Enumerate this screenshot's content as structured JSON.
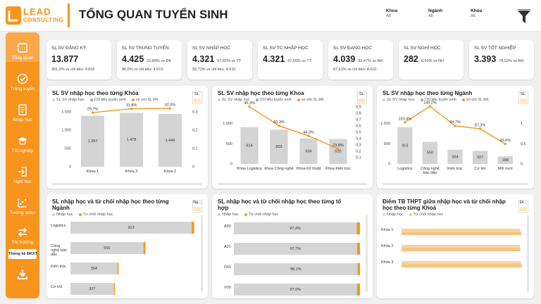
{
  "header": {
    "logo": {
      "top": "LEAD",
      "bottom": "CONSULTING"
    },
    "title": "TỔNG QUAN TUYỂN SINH",
    "filters": [
      {
        "label": "Khoa",
        "value": "All"
      },
      {
        "label": "Ngành",
        "value": "All"
      },
      {
        "label": "Khóa",
        "value": "All"
      }
    ]
  },
  "sidebar": {
    "items": [
      "Tổng quan",
      "Trúng tuyển",
      "Nhập học",
      "Tốt nghiệp",
      "Nghỉ học",
      "Tương quan",
      "Thị trường"
    ],
    "button": "Thống kê ĐKXT"
  },
  "kpis": [
    {
      "label": "SL SV ĐĂNG KÝ",
      "value": "13.877",
      "below": "301,0% vs chỉ tiêu: 4.610"
    },
    {
      "label": "SL SV TRÚNG TUYỂN",
      "value": "4.425",
      "inline": "31,89% vs ĐK",
      "below": "96,0% vs chỉ tiêu: 4.610"
    },
    {
      "label": "SL SV NHẬP HỌC",
      "value": "4.321",
      "inline": "97,65% vs TT",
      "below": "93,73% vs chỉ tiêu: 4.610"
    },
    {
      "label": "SL SV TC NHẬP HỌC",
      "value": "4.321",
      "inline": "97,65% vs TT"
    },
    {
      "label": "SL SV ĐANG HỌC",
      "value": "4.039",
      "inline": "93,47% vs NH",
      "below": "87,61% vs chỉ tiêu: 4.610"
    },
    {
      "label": "SL SV NGHỈ HỌC",
      "value": "282",
      "inline": "6,53% vs NH"
    },
    {
      "label": "SL SV TỐT NGHIỆP",
      "value": "3.393",
      "inline": "78,52% vs NH"
    }
  ],
  "chart_data": [
    {
      "type": "combo",
      "title": "SL SV nhập học theo từng Khóa",
      "slicer": "SL.",
      "categories": [
        "Khóa 1",
        "Khóa 3",
        "Khóa 2"
      ],
      "series": [
        {
          "name": "SL SV nhập học",
          "color": "#d4d4d4",
          "values": [
            1397,
            1478,
            1446
          ],
          "value_labels": [
            "1.397",
            "1.478",
            "1.446"
          ]
        },
        {
          "name": "Chỉ tiêu tuyển sinh",
          "color": "#a6a6a6"
        },
        {
          "name": "so với SL ĐK",
          "color": "#f7941d",
          "axis": "y2",
          "values": [
            0.297,
            0.318,
            0.32
          ],
          "value_labels": [
            "29,7%",
            "31,8%",
            "32,0%"
          ]
        }
      ],
      "ylim": [
        0,
        1600
      ],
      "yticks": [
        0,
        500,
        {
          "value": 1000,
          "label": "1.000"
        },
        {
          "value": 1500,
          "label": "1.500"
        }
      ],
      "y2lim": [
        0,
        0.32
      ],
      "y2ticks": [
        0,
        {
          "value": 0.1,
          "label": "0,1"
        },
        {
          "value": 0.2,
          "label": "0,2"
        },
        {
          "value": 0.3,
          "label": "0,3"
        }
      ]
    },
    {
      "type": "combo",
      "title": "SL SV nhập học theo từng Khoa",
      "slicer": "SL.",
      "categories": [
        "Khoa Logistics",
        "Khoa Công nghệ",
        "Khoa Kỹ thuật",
        "Khoa Kiến trúc"
      ],
      "series": [
        {
          "name": "SL SV nhập học",
          "color": "#d4d4d4",
          "values": [
            914,
            853,
            634,
            620
          ]
        },
        {
          "name": "Chỉ tiêu tuyển sinh",
          "color": "#a6a6a6"
        },
        {
          "name": "so với SL ĐK",
          "color": "#f7941d",
          "axis": "y2",
          "values": [
            0.903,
            0.603,
            0.443,
            0.238
          ],
          "value_labels": [
            "90,3%",
            "60,3%",
            "44,3%",
            "23,8%"
          ]
        }
      ],
      "ylim": [
        0,
        1450
      ],
      "yticks": [
        0,
        500,
        {
          "value": 1000,
          "label": "1.000"
        }
      ],
      "y2lim": [
        0,
        0.92
      ],
      "y2ticks": [
        {
          "value": 0.1,
          "label": "0,1"
        },
        {
          "value": 0.2,
          "label": "0,2"
        },
        {
          "value": 0.3,
          "label": "0,3"
        },
        {
          "value": 0.4,
          "label": "0,4"
        },
        {
          "value": 0.5,
          "label": "0,5"
        },
        {
          "value": 0.6,
          "label": "0,6"
        },
        {
          "value": 0.7,
          "label": "0,7"
        },
        {
          "value": 0.8,
          "label": "0,8"
        },
        {
          "value": 0.9,
          "label": "0,9"
        }
      ]
    },
    {
      "type": "combo",
      "title": "SL SV nhập học theo từng Ngành",
      "slicer": "SL.",
      "categories": [
        "Logistics",
        "Công nghệ bán dẫn",
        "Kiến trúc",
        "Cơ khí",
        "Môi trườ"
      ],
      "series": [
        {
          "name": "SL SV nhập học",
          "color": "#d4d4d4",
          "values": [
            913,
            550,
            354,
            327,
            188
          ]
        },
        {
          "name": "Chỉ tiêu tuyển sinh",
          "color": "#a6a6a6"
        },
        {
          "name": "so với SL ĐK",
          "color": "#f7941d",
          "axis": "y2",
          "values": [
            1.034,
            1.432,
            0.947,
            0.873,
            0.496
          ],
          "value_labels": [
            "103,4%",
            "143,2%",
            "94,7%",
            "87,3%",
            "49,6%"
          ]
        }
      ],
      "ylim": [
        0,
        1450
      ],
      "yticks": [
        0,
        500,
        {
          "value": 1000,
          "label": "1.000"
        }
      ],
      "y2lim": [
        0,
        1.45
      ],
      "y2ticks": [
        0,
        {
          "value": 0.5,
          "label": "0,5"
        },
        1
      ]
    },
    {
      "type": "hbar_stacked",
      "title": "SL nhập học và từ chối nhập học theo từng Ngành",
      "slicer": "Ng...",
      "categories": [
        "Logistics",
        "Công nghệ bán dẫn",
        "Kiến trúc",
        "Cơ khí"
      ],
      "series": [
        {
          "name": "Nhập học",
          "color": "#d4d4d4",
          "values": [
            913,
            550,
            354,
            327
          ]
        },
        {
          "name": "Từ chối nhập học",
          "color": "#f7941d",
          "values": [
            18,
            14,
            9,
            8
          ]
        }
      ],
      "xlim": [
        0,
        960
      ]
    },
    {
      "type": "hbar_stacked",
      "title": "SL nhập học và từ chối nhập học theo từng tổ hợp",
      "categories": [
        "A00",
        "A01",
        "D01",
        "V00"
      ],
      "series": [
        {
          "name": "Nhập học",
          "color": "#d4d4d4",
          "values": [
            97.4,
            97.7,
            98.1,
            97.6
          ],
          "value_labels": [
            "97,4%",
            "97,7%",
            "98,1%",
            "97,6%"
          ]
        },
        {
          "name": "Từ chối nhập học",
          "color": "#f7941d",
          "values": [
            2.6,
            2.3,
            1.9,
            2.4
          ]
        }
      ],
      "xlim": [
        0,
        100
      ]
    },
    {
      "type": "hbar_grouped",
      "title": "Điểm TB THPT giữa nhập học và từ chối nhập học theo từng Khoá",
      "slicer": "Đi...",
      "categories": [
        "Khóa 1",
        "Khóa 2",
        "Khóa 3"
      ],
      "series": [
        {
          "name": "Nhập học",
          "color": "#f6d3a3",
          "values": [
            24.1,
            24.0,
            24.2
          ]
        },
        {
          "name": "Từ chối nhập học",
          "color": "#f9c27d",
          "values": [
            24.3,
            24.1,
            24.4
          ]
        }
      ],
      "xlim": [
        0,
        25
      ]
    }
  ]
}
